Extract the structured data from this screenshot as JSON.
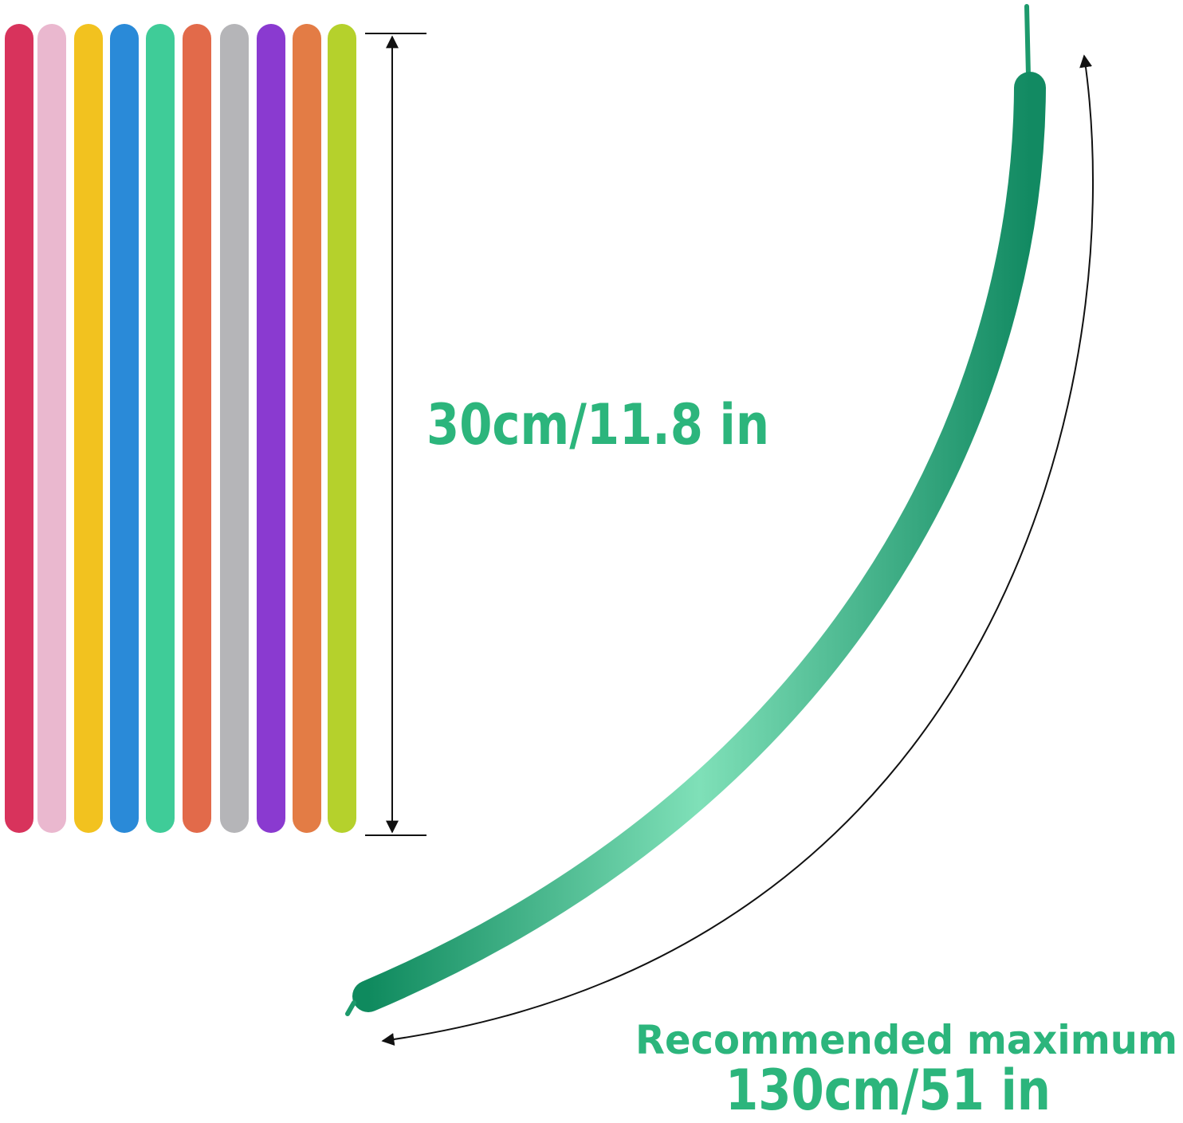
{
  "labels": {
    "uninflated_length": "30cm/11.8 in",
    "caption": "Recommended maximum",
    "inflated_length": "130cm/51 in"
  }
}
